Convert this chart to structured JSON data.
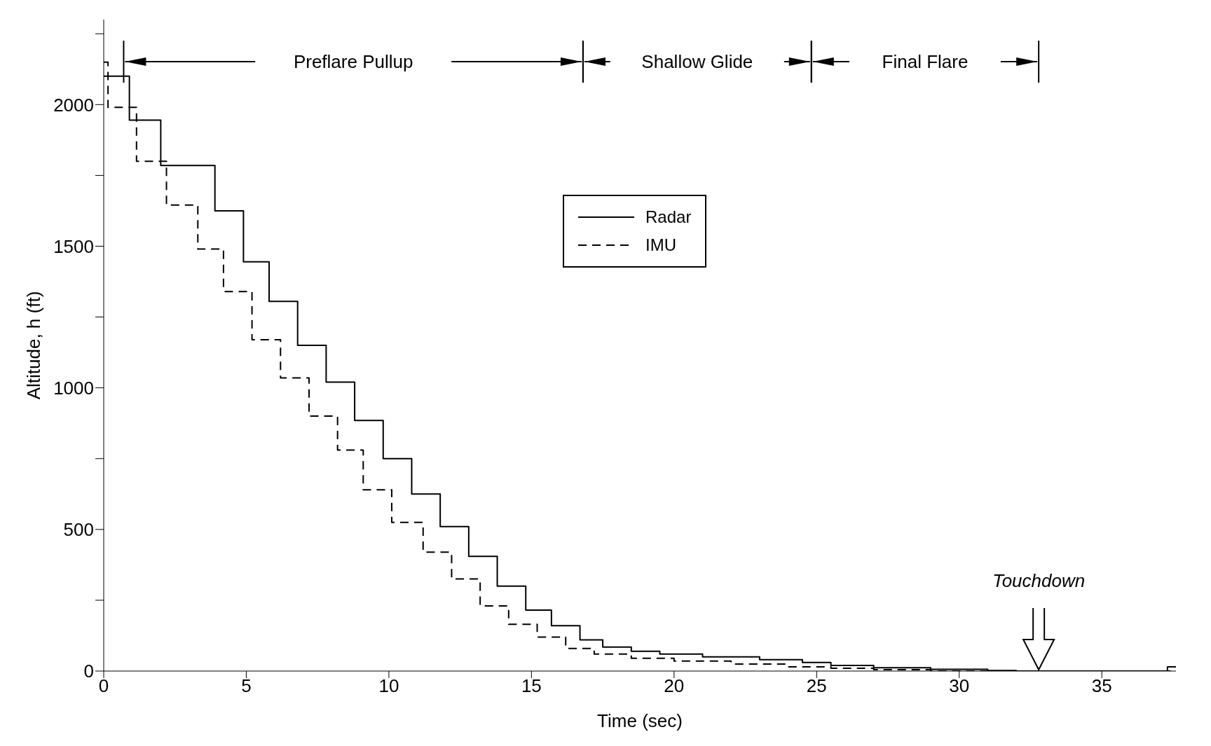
{
  "chart_data": {
    "type": "step",
    "xlabel": "Time (sec)",
    "ylabel": "Altitude, h (ft)",
    "xlim": [
      0,
      37.6
    ],
    "xticks": [
      0,
      5,
      10,
      15,
      20,
      25,
      30,
      35
    ],
    "ylim": [
      0,
      2300
    ],
    "yticks": [
      0,
      {
        "value": 250,
        "label": null
      },
      500,
      {
        "value": 750,
        "label": null
      },
      1000,
      {
        "value": 1250,
        "label": null
      },
      1500,
      {
        "value": 1750,
        "label": null
      },
      2000,
      {
        "value": 2250,
        "label": null
      }
    ],
    "series": [
      {
        "name": "Radar",
        "color": "#000000",
        "line_style": "solid",
        "x": [
          0,
          0.9,
          2.0,
          3.9,
          4.9,
          5.8,
          6.8,
          7.8,
          8.8,
          9.8,
          10.8,
          11.8,
          12.8,
          13.8,
          14.8,
          15.7,
          16.7,
          17.5,
          18.5,
          19.5,
          21,
          23,
          24.5,
          25.5,
          27,
          29,
          31,
          32,
          37.3,
          37.6
        ],
        "values": [
          2100,
          1945,
          1785,
          1625,
          1445,
          1305,
          1150,
          1020,
          885,
          750,
          625,
          510,
          405,
          300,
          215,
          160,
          110,
          85,
          70,
          60,
          50,
          40,
          30,
          20,
          12,
          6,
          2,
          0,
          15,
          15
        ]
      },
      {
        "name": "IMU",
        "color": "#000000",
        "line_style": "dashed",
        "x": [
          0,
          0.15,
          1.15,
          2.2,
          3.3,
          4.2,
          5.2,
          6.2,
          7.2,
          8.2,
          9.1,
          10.1,
          11.2,
          12.2,
          13.2,
          14.2,
          15.2,
          16.2,
          17.2,
          18.5,
          20,
          22,
          24,
          25.5,
          27,
          29,
          37.6
        ],
        "values": [
          2150,
          1990,
          1800,
          1645,
          1490,
          1340,
          1170,
          1035,
          900,
          780,
          640,
          525,
          420,
          325,
          230,
          165,
          120,
          80,
          60,
          45,
          35,
          25,
          15,
          10,
          5,
          0,
          0
        ]
      }
    ],
    "annotations": [
      "Preflare Pullup",
      "Shallow Glide",
      "Final Flare",
      "Touchdown"
    ],
    "legend": "top",
    "grid": false,
    "marker": "none"
  }
}
